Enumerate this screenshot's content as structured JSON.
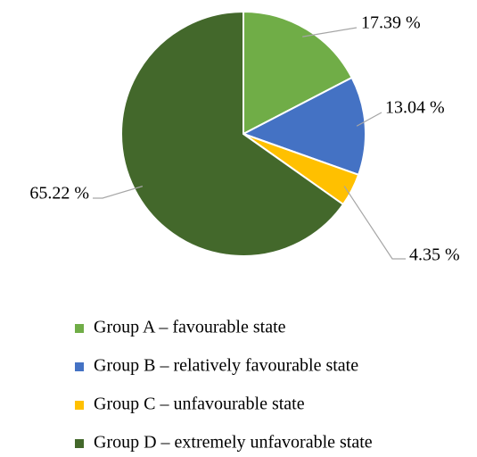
{
  "chart_data": {
    "type": "pie",
    "categories": [
      "Group A – favourable state",
      "Group B – relatively favourable state",
      "Group C – unfavourable state",
      "Group D – extremely unfavorable state"
    ],
    "values": [
      17.39,
      13.04,
      4.35,
      65.22
    ],
    "value_labels": [
      "17.39 %",
      "13.04 %",
      "4.35 %",
      "65.22 %"
    ],
    "colors": [
      "#70ad47",
      "#4472c4",
      "#ffc000",
      "#43682b"
    ],
    "legend": "bottom"
  }
}
